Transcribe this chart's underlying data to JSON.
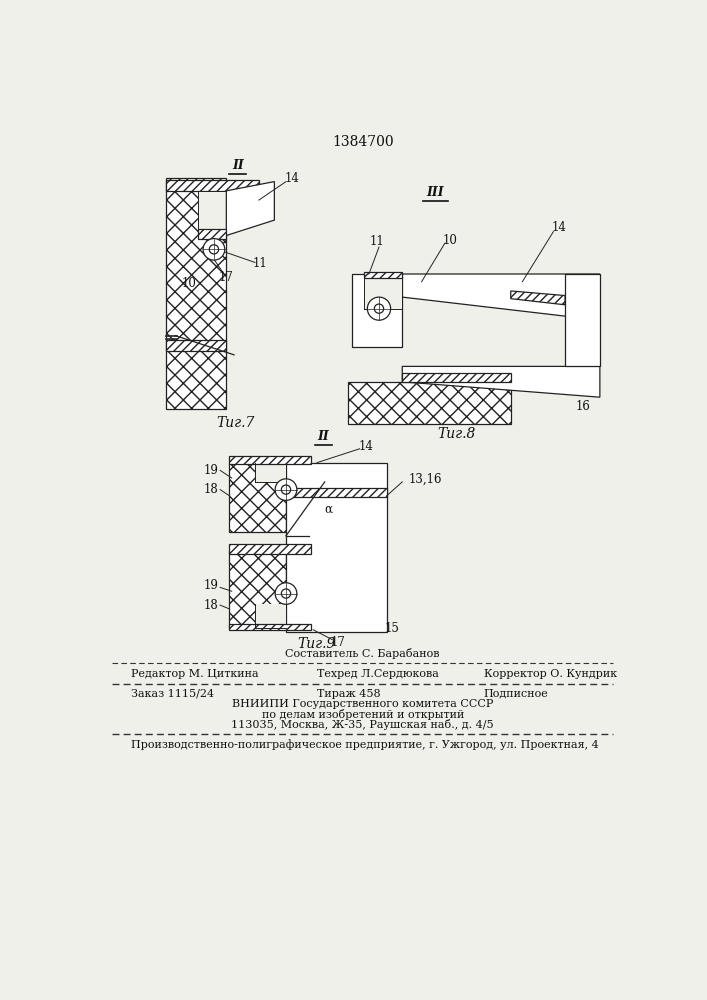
{
  "patent_number": "1384700",
  "bg_color": "#f0f0ea",
  "fig7_caption": "Τиг.7",
  "fig8_caption": "Τиг.8",
  "fig9_caption": "Τиг.9",
  "footer_line0_center": "Составитель С. Барабанов",
  "footer_line1_left": "Редактор М. Циткина",
  "footer_line1_center": "Техред Л.Сердюкова",
  "footer_line1_right": "Корректор О. Кундрик",
  "footer_line2_left": "Заказ 1115/24",
  "footer_line2_center": "Тираж 458",
  "footer_line2_right": "Подписное",
  "footer_line3": "ВНИИПИ Государственного комитета СССР",
  "footer_line4": "по делам изобретений и открытий",
  "footer_line5": "113035, Москва, Ж-35, Раушская наб., д. 4/5",
  "footer_line6": "Производственно-полиграфическое предприятие, г. Ужгород, ул. Проектная, 4"
}
